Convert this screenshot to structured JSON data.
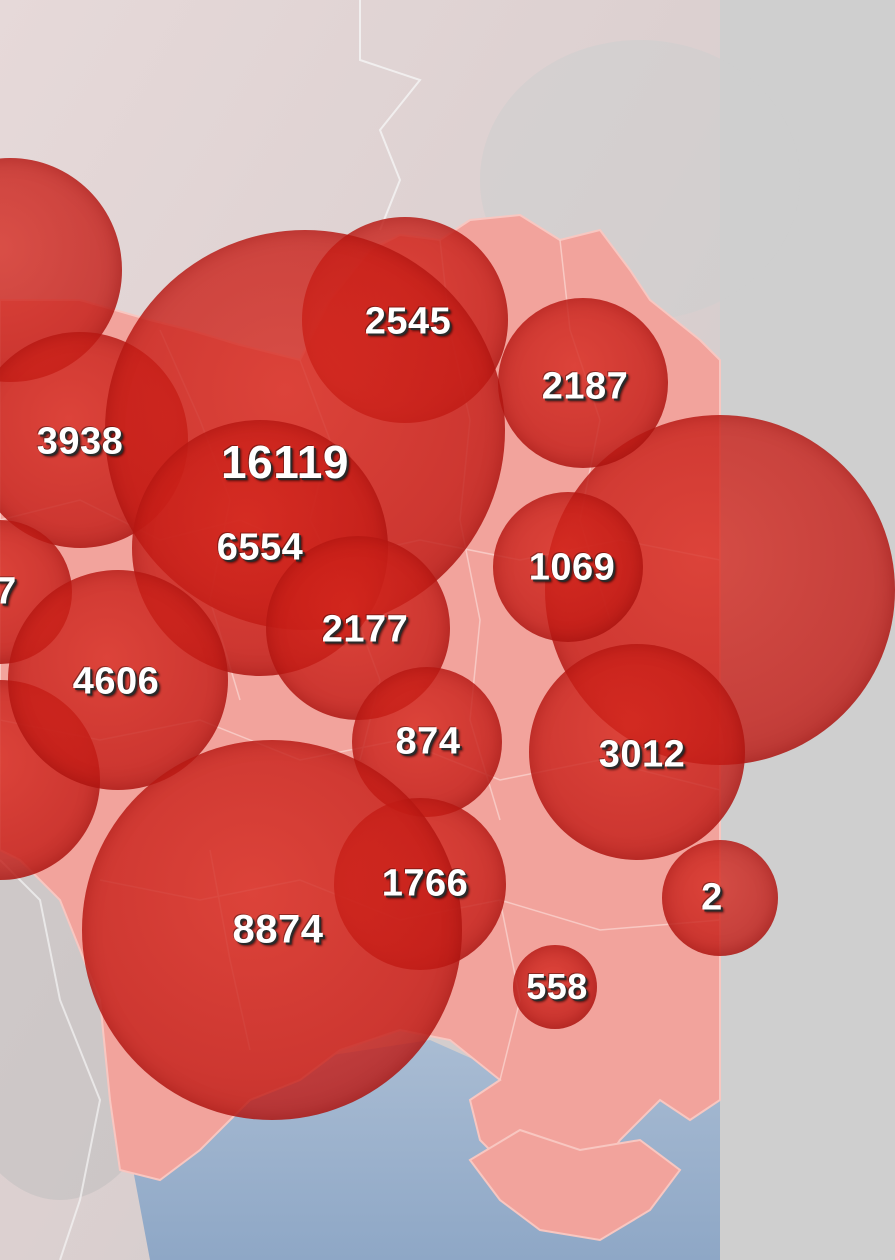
{
  "colors": {
    "land_outside": "#d9d3d3",
    "territory": "#f2a39c",
    "territory_edge": "#f7bdb6",
    "sea": "#9fb4cf",
    "bubble": "#d2281e",
    "label": "#ffffff",
    "label_shadow": "#2a2a2a"
  },
  "regions": [
    {
      "id": "r1",
      "label": "2545"
    },
    {
      "id": "r2",
      "label": "2187"
    },
    {
      "id": "r3",
      "label": "3938"
    },
    {
      "id": "r4",
      "label": "16119"
    },
    {
      "id": "r5",
      "label": "6554"
    },
    {
      "id": "r6",
      "label": "1069"
    },
    {
      "id": "r7",
      "label": "7"
    },
    {
      "id": "r8",
      "label": "2177"
    },
    {
      "id": "r9",
      "label": "4606"
    },
    {
      "id": "r10",
      "label": "874"
    },
    {
      "id": "r11",
      "label": "3012"
    },
    {
      "id": "r12",
      "label": "1766"
    },
    {
      "id": "r13",
      "label": "2"
    },
    {
      "id": "r14",
      "label": "8874"
    },
    {
      "id": "r15",
      "label": "558"
    }
  ]
}
